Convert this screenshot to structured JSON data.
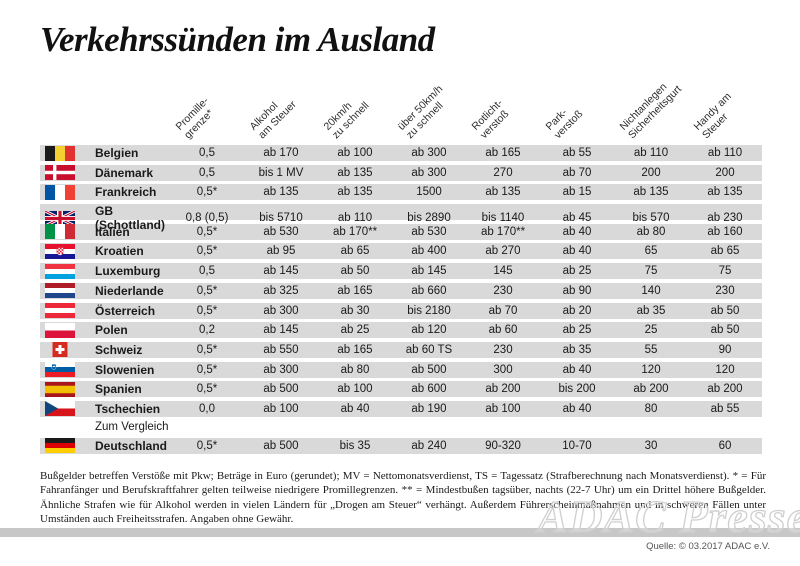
{
  "title": "Verkehrssünden im Ausland",
  "table": {
    "columns": [
      "Promille-\ngrenze*",
      "Alkohol\nam Steuer",
      "20km/h\nzu schnell",
      "über 50km/h\nzu schnell",
      "Rotlicht-\nverstoß",
      "Park-\nverstoß",
      "Nichtanlegen\nSicherheitsgurt",
      "Handy am\nSteuer"
    ],
    "rows": [
      {
        "country": "Belgien",
        "flag": "be",
        "values": [
          "0,5",
          "ab 170",
          "ab 100",
          "ab 300",
          "ab 165",
          "ab 55",
          "ab 110",
          "ab 110"
        ]
      },
      {
        "country": "Dänemark",
        "flag": "dk",
        "values": [
          "0,5",
          "bis 1 MV",
          "ab 135",
          "ab 300",
          "270",
          "ab 70",
          "200",
          "200"
        ]
      },
      {
        "country": "Frankreich",
        "flag": "fr",
        "values": [
          "0,5*",
          "ab 135",
          "ab 135",
          "1500",
          "ab 135",
          "ab 15",
          "ab 135",
          "ab 135"
        ]
      },
      {
        "country": "GB (Schottland)",
        "flag": "gb",
        "values": [
          "0,8 (0,5)",
          "bis 5710",
          "ab 110",
          "bis 2890",
          "bis 1140",
          "ab 45",
          "bis 570",
          "ab 230"
        ]
      },
      {
        "country": "Italien",
        "flag": "it",
        "values": [
          "0,5*",
          "ab 530",
          "ab 170**",
          "ab 530",
          "ab 170**",
          "ab 40",
          "ab 80",
          "ab 160"
        ]
      },
      {
        "country": "Kroatien",
        "flag": "hr",
        "values": [
          "0,5*",
          "ab 95",
          "ab 65",
          "ab 400",
          "ab 270",
          "ab 40",
          "65",
          "ab 65"
        ]
      },
      {
        "country": "Luxemburg",
        "flag": "lu",
        "values": [
          "0,5",
          "ab 145",
          "ab 50",
          "ab 145",
          "145",
          "ab 25",
          "75",
          "75"
        ]
      },
      {
        "country": "Niederlande",
        "flag": "nl",
        "values": [
          "0,5*",
          "ab 325",
          "ab 165",
          "ab 660",
          "230",
          "ab 90",
          "140",
          "230"
        ]
      },
      {
        "country": "Österreich",
        "flag": "at",
        "values": [
          "0,5*",
          "ab 300",
          "ab 30",
          "bis 2180",
          "ab 70",
          "ab 20",
          "ab 35",
          "ab 50"
        ]
      },
      {
        "country": "Polen",
        "flag": "pl",
        "values": [
          "0,2",
          "ab 145",
          "ab 25",
          "ab 120",
          "ab 60",
          "ab 25",
          "25",
          "ab 50"
        ]
      },
      {
        "country": "Schweiz",
        "flag": "ch",
        "values": [
          "0,5*",
          "ab 550",
          "ab 165",
          "ab 60 TS",
          "230",
          "ab 35",
          "55",
          "90"
        ]
      },
      {
        "country": "Slowenien",
        "flag": "si",
        "values": [
          "0,5*",
          "ab 300",
          "ab 80",
          "ab 500",
          "300",
          "ab 40",
          "120",
          "120"
        ]
      },
      {
        "country": "Spanien",
        "flag": "es",
        "values": [
          "0,5*",
          "ab 500",
          "ab 100",
          "ab 600",
          "ab 200",
          "bis 200",
          "ab 200",
          "ab 200"
        ]
      },
      {
        "country": "Tschechien",
        "flag": "cz",
        "values": [
          "0,0",
          "ab 100",
          "ab 40",
          "ab 190",
          "ab 100",
          "ab 40",
          "80",
          "ab 55"
        ]
      }
    ],
    "comparison_label": "Zum Vergleich",
    "comparison_row": {
      "country": "Deutschland",
      "flag": "de",
      "values": [
        "0,5*",
        "ab 500",
        "bis 35",
        "ab 240",
        "90-320",
        "10-70",
        "30",
        "60"
      ]
    }
  },
  "footnote": "Bußgelder betreffen Verstöße mit Pkw; Beträge in Euro (gerundet); MV = Nettomonatsverdienst, TS = Tagessatz (Strafberechnung nach Monatsverdienst). * = Für Fahranfänger und Berufskraftfahrer gelten teilweise niedrigere Promillegrenzen. ** = Mindestbußen tagsüber, nachts (22-7 Uhr) um ein Drittel höhere Bußgelder. Ähnliche Strafen wie für Alkohol werden in vielen Ländern für „Drogen am Steuer“ verhängt. Außerdem Führerscheinmaßnahmen und in schweren Fällen unter Umständen auch Freiheitsstrafen. Angaben ohne Gewähr.",
  "watermark": "ADAC Presse",
  "source": "Quelle: © 03.2017 ADAC e.V.",
  "colors": {
    "row_background": "#d9d9d9",
    "bottom_bar": "#c7c7c7",
    "text": "#1a1a1a"
  }
}
